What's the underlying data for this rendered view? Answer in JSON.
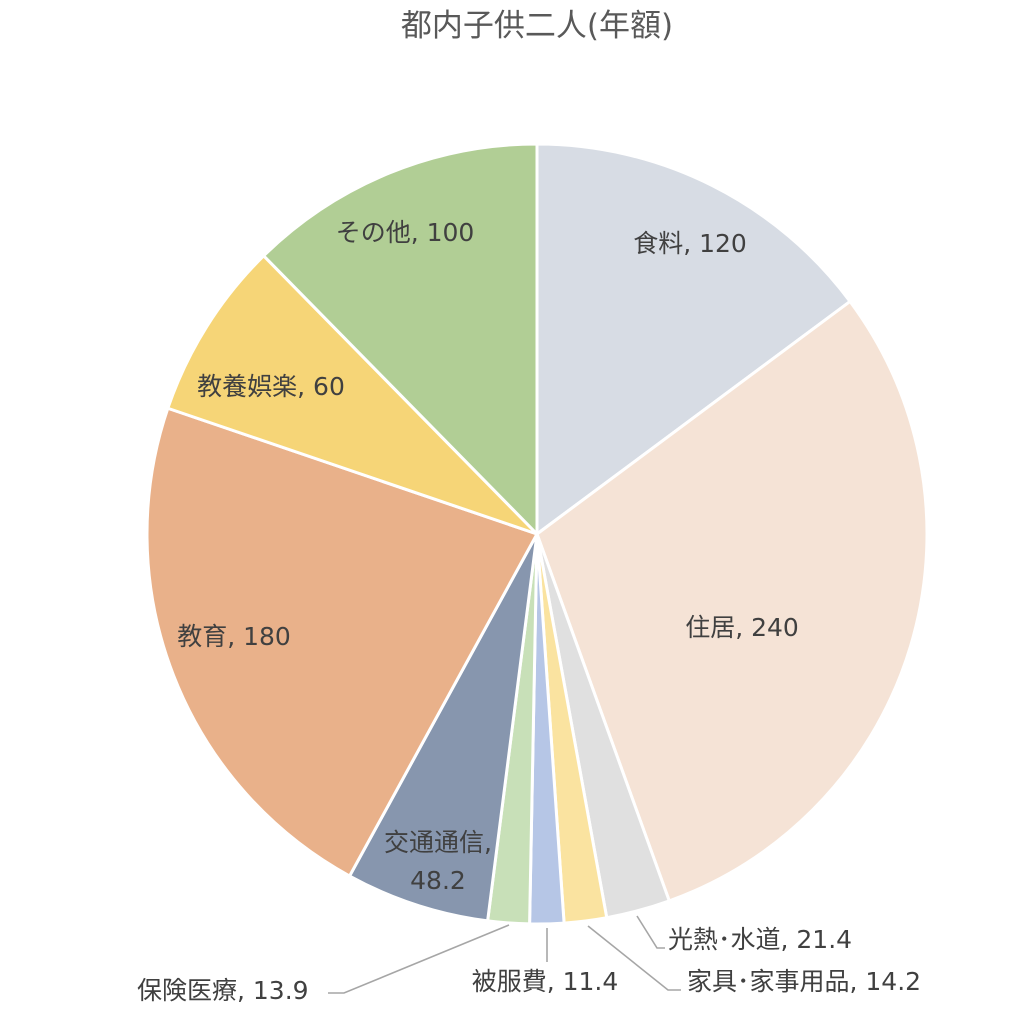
{
  "chart_data": {
    "type": "pie",
    "title": "都内子供二人(年額)",
    "categories": [
      "食料",
      "住居",
      "光熱・水道",
      "家具・家事用品",
      "被服費",
      "保険医療",
      "交通通信",
      "教育",
      "教養娯楽",
      "その他"
    ],
    "values": [
      120,
      240,
      21.4,
      14.2,
      11.4,
      13.9,
      48.2,
      180,
      60,
      100
    ],
    "display_names": [
      "食料",
      "住居",
      "光熱･水道",
      "家具･家事用品",
      "被服費",
      "保険医療",
      "交通通信",
      "教育",
      "教養娯楽",
      "その他"
    ],
    "value_labels": [
      "120",
      "240",
      "21.4",
      "14.2",
      "11.4",
      "13.9",
      "48.2",
      "180",
      "60",
      "100"
    ],
    "colors": [
      "#d7dce4",
      "#f5e3d6",
      "#e0e0e0",
      "#fae3a0",
      "#b6c6e6",
      "#c8e0b8",
      "#8796ae",
      "#e9b18a",
      "#f6d577",
      "#b1ce95"
    ],
    "start_angle": "12 o'clock",
    "direction": "clockwise",
    "legend": "none",
    "label_format": "category, value"
  }
}
